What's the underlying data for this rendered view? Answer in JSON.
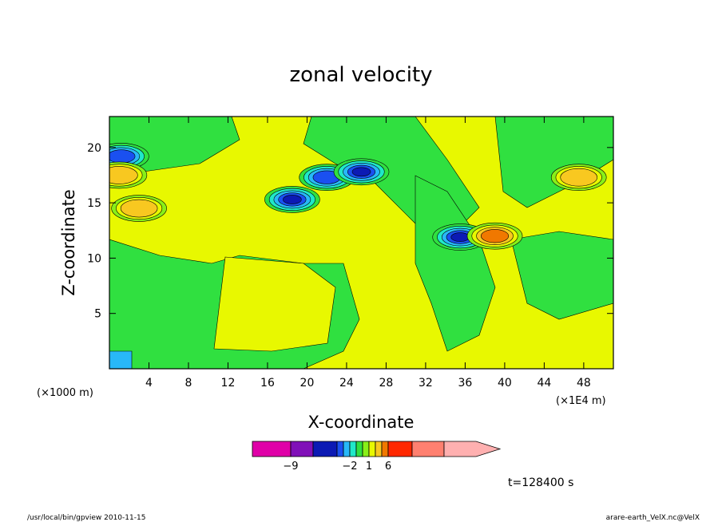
{
  "chart_data": {
    "type": "heatmap",
    "title": "zonal velocity",
    "xlabel": "X-coordinate",
    "ylabel": "Z-coordinate",
    "x_unit_label": "(×1000 m)",
    "x_scale_label": "(×1E4 m)",
    "xlim": [
      0,
      51
    ],
    "ylim": [
      0,
      22.8
    ],
    "x_ticks": [
      4,
      8,
      12,
      16,
      20,
      24,
      28,
      32,
      36,
      40,
      44,
      48
    ],
    "x_tick_labels": [
      "4",
      "8",
      "12",
      "16",
      "20",
      "24",
      "28",
      "32",
      "36",
      "40",
      "44",
      "48"
    ],
    "y_ticks": [
      5,
      10,
      15,
      20
    ],
    "y_tick_labels": [
      "5",
      "10",
      "15",
      "20"
    ],
    "colorbar": {
      "levels": [
        -12,
        -9,
        -7,
        -4,
        -3,
        -2,
        -1,
        0,
        1,
        2,
        3,
        6,
        9,
        12
      ],
      "tick_labels": [
        {
          "value": -9,
          "label": "−9"
        },
        {
          "value": -2,
          "label": "−2"
        },
        {
          "value": 1,
          "label": "1"
        },
        {
          "value": 6,
          "label": "6"
        }
      ],
      "colors": [
        "#e000a8",
        "#8010b8",
        "#0c1ab4",
        "#1a50f0",
        "#28b8f8",
        "#20e8c8",
        "#30e040",
        "#88ef18",
        "#e8f800",
        "#f8c820",
        "#f07800",
        "#ff2800",
        "#ff8070",
        "#ffb0b0"
      ]
    },
    "features": [
      {
        "kind": "negative_core",
        "x": 18.5,
        "z": 15.3,
        "value": -5
      },
      {
        "kind": "negative_core",
        "x": 22.0,
        "z": 17.3,
        "value": -4
      },
      {
        "kind": "negative_core",
        "x": 25.5,
        "z": 17.8,
        "value": -5
      },
      {
        "kind": "negative_core",
        "x": 35.5,
        "z": 11.9,
        "value": -5
      },
      {
        "kind": "negative_core",
        "x": 1.2,
        "z": 19.2,
        "value": -4
      },
      {
        "kind": "positive_core",
        "x": 3.0,
        "z": 14.5,
        "value": 3
      },
      {
        "kind": "positive_core",
        "x": 39.0,
        "z": 12.0,
        "value": 4
      },
      {
        "kind": "positive_core",
        "x": 47.5,
        "z": 17.3,
        "value": 3
      },
      {
        "kind": "positive_core",
        "x": 1.0,
        "z": 17.5,
        "value": 3
      }
    ]
  },
  "time_label": "t=128400 s",
  "footer_left": "/usr/local/bin/gpview  2010-11-15",
  "footer_right": "arare-earth_VelX.nc@VelX"
}
